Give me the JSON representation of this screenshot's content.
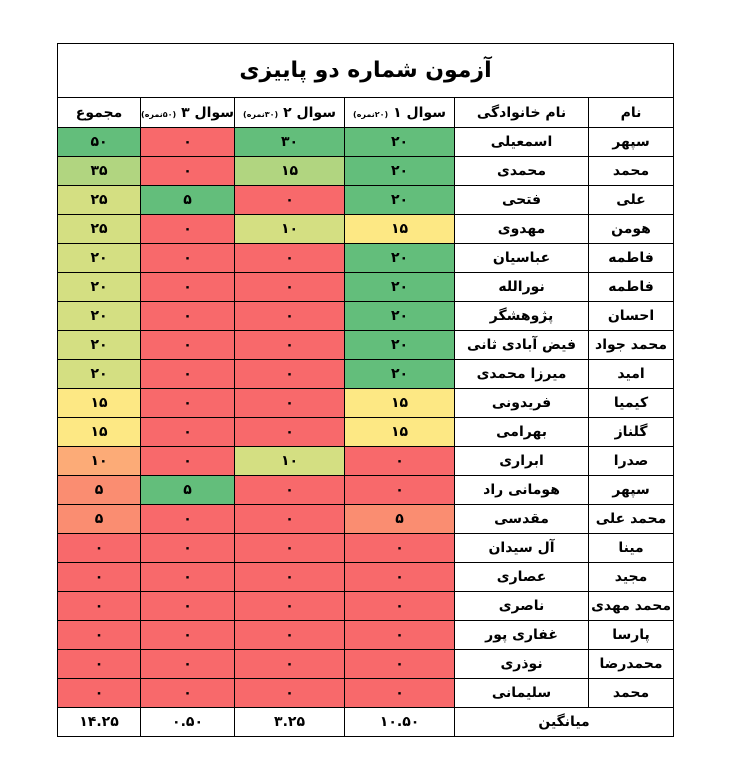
{
  "title": "آزمون شماره دو پاییزی",
  "headers": {
    "name": "نام",
    "family": "نام خانوادگی",
    "q1": "سوال ۱",
    "q1_note": "(۲۰نمره)",
    "q2": "سوال ۲",
    "q2_note": "(۳۰نمره)",
    "q3": "سوال ۳",
    "q3_note": "(۵۰نمره)",
    "total": "مجموع"
  },
  "colors": {
    "green": "#63be7b",
    "lightgreen": "#b1d580",
    "yellowgreen": "#d4df82",
    "yellow": "#fde884",
    "orange": "#fcab77",
    "salmon": "#fa8d71",
    "red": "#f8696b"
  },
  "rows": [
    {
      "name": "سپهر",
      "family": "اسمعیلی",
      "q1": "۲۰",
      "q2": "۳۰",
      "q3": "۰",
      "total": "۵۰",
      "c1": "green",
      "c2": "green",
      "c3": "red",
      "ct": "green"
    },
    {
      "name": "محمد",
      "family": "محمدی",
      "q1": "۲۰",
      "q2": "۱۵",
      "q3": "۰",
      "total": "۳۵",
      "c1": "green",
      "c2": "lightgreen",
      "c3": "red",
      "ct": "lightgreen"
    },
    {
      "name": "علی",
      "family": "فتحی",
      "q1": "۲۰",
      "q2": "۰",
      "q3": "۵",
      "total": "۲۵",
      "c1": "green",
      "c2": "red",
      "c3": "green",
      "ct": "yellowgreen"
    },
    {
      "name": "هومن",
      "family": "مهدوی",
      "q1": "۱۵",
      "q2": "۱۰",
      "q3": "۰",
      "total": "۲۵",
      "c1": "yellow",
      "c2": "yellowgreen",
      "c3": "red",
      "ct": "yellowgreen"
    },
    {
      "name": "فاطمه",
      "family": "عباسیان",
      "q1": "۲۰",
      "q2": "۰",
      "q3": "۰",
      "total": "۲۰",
      "c1": "green",
      "c2": "red",
      "c3": "red",
      "ct": "yellowgreen"
    },
    {
      "name": "فاطمه",
      "family": "نورالله",
      "q1": "۲۰",
      "q2": "۰",
      "q3": "۰",
      "total": "۲۰",
      "c1": "green",
      "c2": "red",
      "c3": "red",
      "ct": "yellowgreen"
    },
    {
      "name": "احسان",
      "family": "پژوهشگر",
      "q1": "۲۰",
      "q2": "۰",
      "q3": "۰",
      "total": "۲۰",
      "c1": "green",
      "c2": "red",
      "c3": "red",
      "ct": "yellowgreen"
    },
    {
      "name": "محمد جواد",
      "family": "فیض آبادی ثانی",
      "q1": "۲۰",
      "q2": "۰",
      "q3": "۰",
      "total": "۲۰",
      "c1": "green",
      "c2": "red",
      "c3": "red",
      "ct": "yellowgreen"
    },
    {
      "name": "امید",
      "family": "میرزا محمدی",
      "q1": "۲۰",
      "q2": "۰",
      "q3": "۰",
      "total": "۲۰",
      "c1": "green",
      "c2": "red",
      "c3": "red",
      "ct": "yellowgreen"
    },
    {
      "name": "کیمیا",
      "family": "فریدونی",
      "q1": "۱۵",
      "q2": "۰",
      "q3": "۰",
      "total": "۱۵",
      "c1": "yellow",
      "c2": "red",
      "c3": "red",
      "ct": "yellow"
    },
    {
      "name": "گلناز",
      "family": "بهرامی",
      "q1": "۱۵",
      "q2": "۰",
      "q3": "۰",
      "total": "۱۵",
      "c1": "yellow",
      "c2": "red",
      "c3": "red",
      "ct": "yellow"
    },
    {
      "name": "صدرا",
      "family": "ابراری",
      "q1": "۰",
      "q2": "۱۰",
      "q3": "۰",
      "total": "۱۰",
      "c1": "red",
      "c2": "yellowgreen",
      "c3": "red",
      "ct": "orange"
    },
    {
      "name": "سپهر",
      "family": "هومانی راد",
      "q1": "۰",
      "q2": "۰",
      "q3": "۵",
      "total": "۵",
      "c1": "red",
      "c2": "red",
      "c3": "green",
      "ct": "salmon"
    },
    {
      "name": "محمد علی",
      "family": "مقدسی",
      "q1": "۵",
      "q2": "۰",
      "q3": "۰",
      "total": "۵",
      "c1": "salmon",
      "c2": "red",
      "c3": "red",
      "ct": "salmon"
    },
    {
      "name": "مینا",
      "family": "آل سیدان",
      "q1": "۰",
      "q2": "۰",
      "q3": "۰",
      "total": "۰",
      "c1": "red",
      "c2": "red",
      "c3": "red",
      "ct": "red"
    },
    {
      "name": "مجید",
      "family": "عصاری",
      "q1": "۰",
      "q2": "۰",
      "q3": "۰",
      "total": "۰",
      "c1": "red",
      "c2": "red",
      "c3": "red",
      "ct": "red"
    },
    {
      "name": "محمد مهدی",
      "family": "ناصری",
      "q1": "۰",
      "q2": "۰",
      "q3": "۰",
      "total": "۰",
      "c1": "red",
      "c2": "red",
      "c3": "red",
      "ct": "red"
    },
    {
      "name": "پارسا",
      "family": "غفاری پور",
      "q1": "۰",
      "q2": "۰",
      "q3": "۰",
      "total": "۰",
      "c1": "red",
      "c2": "red",
      "c3": "red",
      "ct": "red"
    },
    {
      "name": "محمدرضا",
      "family": "نوذری",
      "q1": "۰",
      "q2": "۰",
      "q3": "۰",
      "total": "۰",
      "c1": "red",
      "c2": "red",
      "c3": "red",
      "ct": "red"
    },
    {
      "name": "محمد",
      "family": "سلیمانی",
      "q1": "۰",
      "q2": "۰",
      "q3": "۰",
      "total": "۰",
      "c1": "red",
      "c2": "red",
      "c3": "red",
      "ct": "red"
    }
  ],
  "average": {
    "label": "میانگین",
    "q1": "۱۰.۵۰",
    "q2": "۳.۲۵",
    "q3": "۰.۵۰",
    "total": "۱۴.۲۵"
  }
}
